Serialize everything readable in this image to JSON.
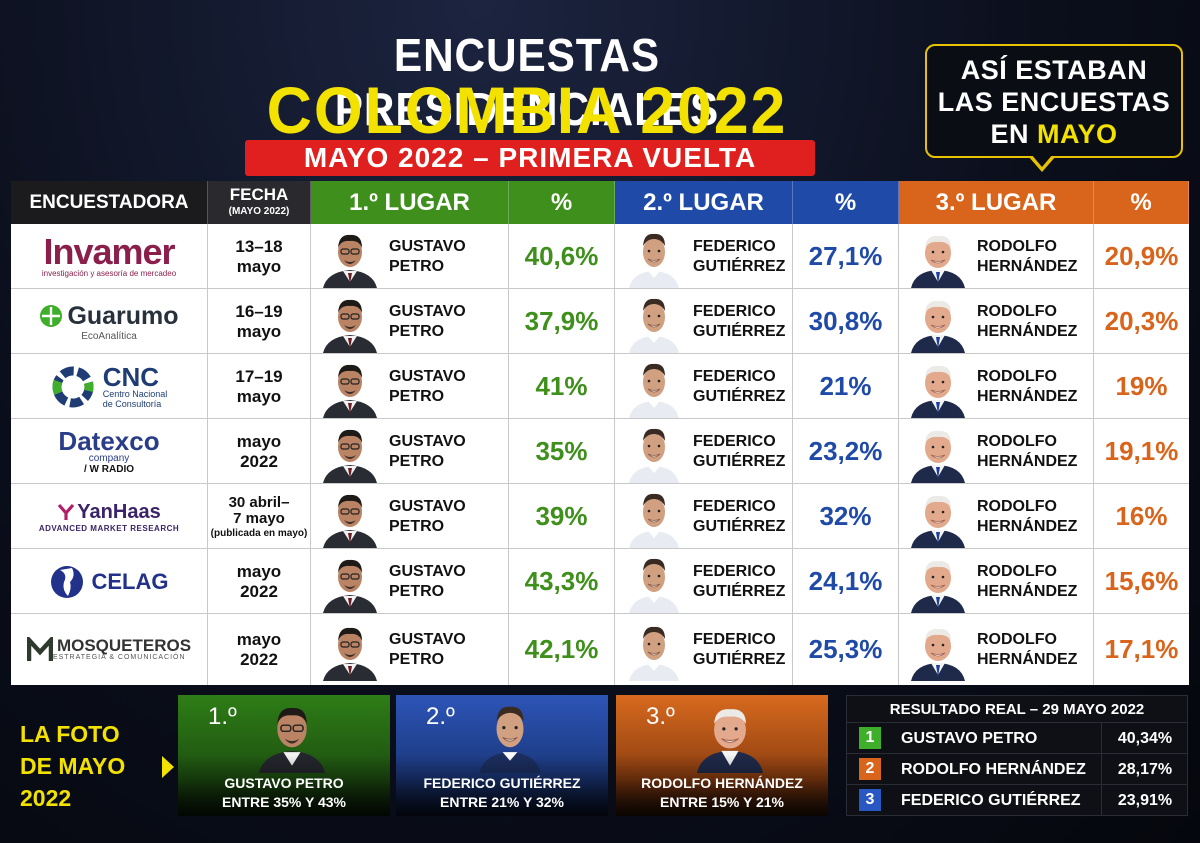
{
  "header": {
    "title_line1": "ENCUESTAS PRESIDENCIALES",
    "title_line2": "COLOMBIA 2022",
    "subtitle": "MAYO 2022 – PRIMERA VUELTA",
    "callout_line1": "ASÍ ESTABAN",
    "callout_line2": "LAS ENCUESTAS",
    "callout_line3_prefix": "EN ",
    "callout_line3_highlight": "MAYO"
  },
  "colors": {
    "first": "#3f8f1c",
    "second": "#1f4aa8",
    "third": "#d9641b",
    "title_yellow": "#f3e100",
    "subtitle_red": "#e0201e"
  },
  "table": {
    "headers": {
      "encuestadora": "ENCUESTADORA",
      "fecha": "FECHA",
      "fecha_sub": "(MAYO 2022)",
      "lugar1": "1.º LUGAR",
      "pct1": "%",
      "lugar2": "2.º LUGAR",
      "pct2": "%",
      "lugar3": "3.º LUGAR",
      "pct3": "%"
    },
    "candidates": {
      "first_line1": "GUSTAVO",
      "first_line2": "PETRO",
      "second_line1": "FEDERICO",
      "second_line2": "GUTIÉRREZ",
      "third_line1": "RODOLFO",
      "third_line2": "HERNÁNDEZ"
    },
    "rows": [
      {
        "pollster": "Invamer",
        "logo_main": "Invamer",
        "logo_sub": "investigación y asesoría de mercadeo",
        "fecha_line1": "13–18",
        "fecha_line2": "mayo",
        "p1": "40,6%",
        "p2": "27,1%",
        "p3": "20,9%"
      },
      {
        "pollster": "Guarumo",
        "logo_main": "Guarumo",
        "logo_sub": "EcoAnalítica",
        "fecha_line1": "16–19",
        "fecha_line2": "mayo",
        "p1": "37,9%",
        "p2": "30,8%",
        "p3": "20,3%"
      },
      {
        "pollster": "CNC",
        "logo_main": "CNC",
        "logo_sub_line1": "Centro Nacional",
        "logo_sub_line2": "de Consultoría",
        "fecha_line1": "17–19",
        "fecha_line2": "mayo",
        "p1": "41%",
        "p2": "21%",
        "p3": "19%"
      },
      {
        "pollster": "Datexco",
        "logo_main": "Datexco",
        "logo_sub_line1": "company",
        "logo_sub_line2": "/ W RADIO",
        "fecha_line1": "mayo",
        "fecha_line2": "2022",
        "p1": "35%",
        "p2": "23,2%",
        "p3": "19,1%"
      },
      {
        "pollster": "YanHaas",
        "logo_main": "YanHaas",
        "logo_sub": "ADVANCED MARKET RESEARCH",
        "fecha_line1": "30 abril–",
        "fecha_line2": "7 mayo",
        "fecha_note": "(publicada en mayo)",
        "p1": "39%",
        "p2": "32%",
        "p3": "16%"
      },
      {
        "pollster": "CELAG",
        "logo_main": "CELAG",
        "fecha_line1": "mayo",
        "fecha_line2": "2022",
        "p1": "43,3%",
        "p2": "24,1%",
        "p3": "15,6%"
      },
      {
        "pollster": "Mosqueteros",
        "logo_main": "MOSQUETEROS",
        "logo_sub": "ESTRATEGIA & COMUNICACIÓN",
        "fecha_line1": "mayo",
        "fecha_line2": "2022",
        "p1": "42,1%",
        "p2": "25,3%",
        "p3": "17,1%"
      }
    ]
  },
  "bottom": {
    "foto_line1": "LA FOTO",
    "foto_line2": "DE MAYO 2022",
    "cards": [
      {
        "rank": "1.º",
        "name": "GUSTAVO PETRO",
        "range": "ENTRE 35% Y 43%"
      },
      {
        "rank": "2.º",
        "name": "FEDERICO GUTIÉRREZ",
        "range": "ENTRE 21% Y 32%"
      },
      {
        "rank": "3.º",
        "name": "RODOLFO HERNÁNDEZ",
        "range": "ENTRE 15% Y 21%"
      }
    ],
    "result": {
      "title": "RESULTADO REAL – 29 MAYO 2022",
      "rows": [
        {
          "rank": "1",
          "name": "GUSTAVO PETRO",
          "pct": "40,34%"
        },
        {
          "rank": "2",
          "name": "RODOLFO HERNÁNDEZ",
          "pct": "28,17%"
        },
        {
          "rank": "3",
          "name": "FEDERICO GUTIÉRREZ",
          "pct": "23,91%"
        }
      ]
    }
  }
}
